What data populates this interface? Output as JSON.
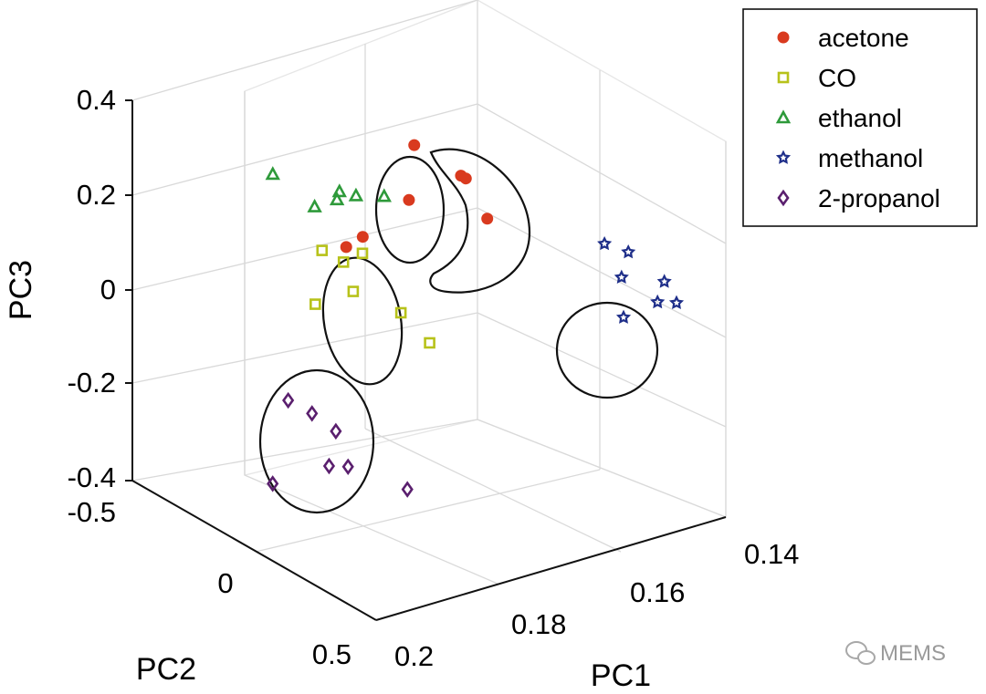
{
  "chart_data": {
    "type": "scatter",
    "projection": "3d",
    "title": "",
    "xlabel": "PC1",
    "ylabel": "PC2",
    "zlabel": "PC3",
    "xlim": [
      0.14,
      0.2
    ],
    "ylim": [
      -0.5,
      0.5
    ],
    "zlim": [
      -0.4,
      0.4
    ],
    "x_ticks": [
      "0.14",
      "0.16",
      "0.18",
      "0.2"
    ],
    "y_ticks": [
      "-0.5",
      "0",
      "0.5"
    ],
    "z_ticks": [
      "0.4",
      "0.2",
      "0",
      "-0.2",
      "-0.4"
    ],
    "grid": true,
    "legend_position": "top-right",
    "series": [
      {
        "name": "acetone",
        "marker": "circle",
        "color": "#d93a1f",
        "points": [
          {
            "x": 0.16,
            "y": -0.3,
            "z": 0.22
          },
          {
            "x": 0.157,
            "y": -0.18,
            "z": 0.18
          },
          {
            "x": 0.157,
            "y": -0.16,
            "z": 0.18
          },
          {
            "x": 0.163,
            "y": -0.25,
            "z": 0.13
          },
          {
            "x": 0.155,
            "y": -0.12,
            "z": 0.1
          },
          {
            "x": 0.168,
            "y": -0.32,
            "z": 0.05
          },
          {
            "x": 0.17,
            "y": -0.34,
            "z": 0.03
          }
        ]
      },
      {
        "name": "CO",
        "marker": "square",
        "color": "#b7c21a",
        "points": [
          {
            "x": 0.18,
            "y": -0.2,
            "z": 0.1
          },
          {
            "x": 0.178,
            "y": -0.16,
            "z": 0.08
          },
          {
            "x": 0.176,
            "y": -0.13,
            "z": 0.1
          },
          {
            "x": 0.178,
            "y": -0.12,
            "z": 0.03
          },
          {
            "x": 0.182,
            "y": -0.18,
            "z": 0.0
          },
          {
            "x": 0.174,
            "y": -0.02,
            "z": 0.0
          },
          {
            "x": 0.172,
            "y": 0.05,
            "z": -0.05
          }
        ]
      },
      {
        "name": "ethanol",
        "marker": "triangle",
        "color": "#2e9a3a",
        "points": [
          {
            "x": 0.178,
            "y": -0.45,
            "z": 0.18
          },
          {
            "x": 0.172,
            "y": -0.32,
            "z": 0.16
          },
          {
            "x": 0.17,
            "y": -0.3,
            "z": 0.15
          },
          {
            "x": 0.172,
            "y": -0.33,
            "z": 0.14
          },
          {
            "x": 0.166,
            "y": -0.28,
            "z": 0.14
          },
          {
            "x": 0.175,
            "y": -0.35,
            "z": 0.13
          }
        ]
      },
      {
        "name": "methanol",
        "marker": "pentagram",
        "color": "#1f2f8a",
        "points": [
          {
            "x": 0.142,
            "y": 0.05,
            "z": 0.05
          },
          {
            "x": 0.14,
            "y": 0.1,
            "z": 0.04
          },
          {
            "x": 0.142,
            "y": 0.12,
            "z": 0.0
          },
          {
            "x": 0.138,
            "y": 0.2,
            "z": 0.0
          },
          {
            "x": 0.14,
            "y": 0.22,
            "z": -0.03
          },
          {
            "x": 0.138,
            "y": 0.25,
            "z": -0.03
          },
          {
            "x": 0.145,
            "y": 0.2,
            "z": -0.05
          }
        ]
      },
      {
        "name": "2-propanol",
        "marker": "diamond",
        "color": "#5a1f6e",
        "points": [
          {
            "x": 0.19,
            "y": -0.1,
            "z": -0.15
          },
          {
            "x": 0.188,
            "y": -0.05,
            "z": -0.17
          },
          {
            "x": 0.186,
            "y": 0.0,
            "z": -0.2
          },
          {
            "x": 0.188,
            "y": 0.02,
            "z": -0.26
          },
          {
            "x": 0.186,
            "y": 0.05,
            "z": -0.26
          },
          {
            "x": 0.196,
            "y": -0.02,
            "z": -0.28
          },
          {
            "x": 0.18,
            "y": 0.15,
            "z": -0.3
          }
        ]
      }
    ]
  },
  "watermark": {
    "text": "MEMS",
    "icon": "wechat-icon"
  }
}
